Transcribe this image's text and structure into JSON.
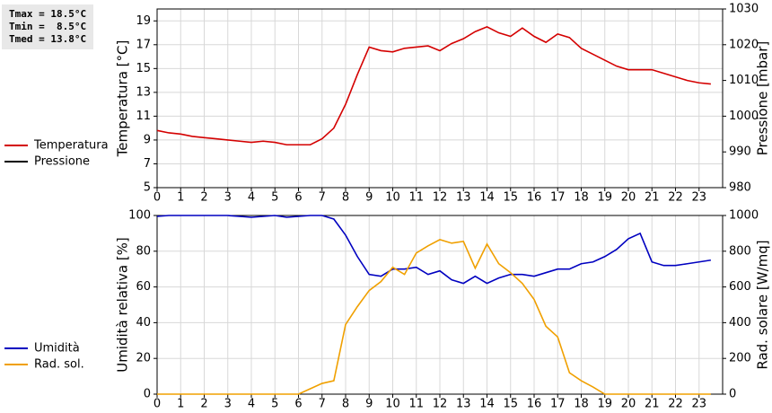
{
  "summary": [
    "Tmax = 18.5°C",
    "Tmin =  8.5°C",
    "Tmed = 13.8°C"
  ],
  "chart_data": [
    {
      "type": "line",
      "ylabel": "Temperatura [°C]",
      "y2label": "Pressione [mbar]",
      "x": [
        0,
        0.5,
        1,
        1.5,
        2,
        2.5,
        3,
        3.5,
        4,
        4.5,
        5,
        5.5,
        6,
        6.5,
        7,
        7.5,
        8,
        8.5,
        9,
        9.5,
        10,
        10.5,
        11,
        11.5,
        12,
        12.5,
        13,
        13.5,
        14,
        14.5,
        15,
        15.5,
        16,
        16.5,
        17,
        17.5,
        18,
        18.5,
        19,
        19.5,
        20,
        20.5,
        21,
        21.5,
        22,
        22.5,
        23,
        23.5
      ],
      "series": [
        {
          "name": "Temperatura",
          "color": "#d40000",
          "values": [
            9.8,
            9.6,
            9.5,
            9.3,
            9.2,
            9.1,
            9.0,
            8.9,
            8.8,
            8.9,
            8.8,
            8.6,
            8.6,
            8.6,
            9.1,
            10.0,
            12.0,
            14.5,
            16.8,
            16.5,
            16.4,
            16.7,
            16.8,
            16.9,
            16.5,
            17.1,
            17.5,
            18.1,
            18.5,
            18.0,
            17.7,
            18.4,
            17.7,
            17.2,
            17.9,
            17.6,
            16.7,
            16.2,
            15.7,
            15.2,
            14.9,
            14.9,
            14.9,
            14.6,
            14.3,
            14.0,
            13.8,
            13.7
          ]
        },
        {
          "name": "Pressione",
          "color": "#000000",
          "axis": "y2",
          "values": [
            null,
            null,
            null,
            null,
            null,
            null,
            null,
            null,
            null,
            null,
            null,
            null,
            null,
            null,
            null,
            null,
            null,
            null,
            null,
            null,
            null,
            null,
            null,
            null,
            null,
            null,
            null,
            null,
            null,
            null,
            null,
            null,
            null,
            null,
            null,
            null,
            null,
            null,
            null,
            null,
            null,
            null,
            null,
            null,
            null,
            null,
            null,
            null
          ]
        }
      ],
      "xlim": [
        0,
        24
      ],
      "xticks": [
        0,
        1,
        2,
        3,
        4,
        5,
        6,
        7,
        8,
        9,
        10,
        11,
        12,
        13,
        14,
        15,
        16,
        17,
        18,
        19,
        20,
        21,
        22,
        23
      ],
      "ylim": [
        5,
        20
      ],
      "yticks": [
        5,
        7,
        9,
        11,
        13,
        15,
        17,
        19
      ],
      "y2lim": [
        980,
        1030
      ],
      "y2ticks": [
        980,
        990,
        1000,
        1010,
        1020,
        1030
      ],
      "grid": true,
      "legend": "left"
    },
    {
      "type": "line",
      "ylabel": "Umidità relativa [%]",
      "y2label": "Rad. solare [W/mq]",
      "x": [
        0,
        0.5,
        1,
        1.5,
        2,
        2.5,
        3,
        3.5,
        4,
        4.5,
        5,
        5.5,
        6,
        6.5,
        7,
        7.5,
        8,
        8.5,
        9,
        9.5,
        10,
        10.5,
        11,
        11.5,
        12,
        12.5,
        13,
        13.5,
        14,
        14.5,
        15,
        15.5,
        16,
        16.5,
        17,
        17.5,
        18,
        18.5,
        19,
        19.5,
        20,
        20.5,
        21,
        21.5,
        22,
        22.5,
        23,
        23.5
      ],
      "series": [
        {
          "name": "Umidità",
          "color": "#0000c0",
          "values": [
            99.5,
            100,
            100,
            100,
            100,
            100,
            100,
            99.5,
            99,
            99.5,
            100,
            99,
            99.5,
            100,
            100,
            98,
            89,
            77,
            67,
            66,
            70,
            70,
            71,
            67,
            69,
            64,
            62,
            66,
            62,
            65,
            67,
            67,
            66,
            68,
            70,
            70,
            73,
            74,
            77,
            81,
            87,
            90,
            74,
            72,
            72,
            73,
            74,
            75
          ]
        },
        {
          "name": "Rad. sol.",
          "color": "#f0a000",
          "axis": "y2",
          "values": [
            0,
            0,
            0,
            0,
            0,
            0,
            0,
            0,
            0,
            0,
            0,
            0,
            0,
            30,
            60,
            75,
            390,
            490,
            580,
            630,
            710,
            670,
            790,
            830,
            865,
            845,
            855,
            705,
            840,
            730,
            680,
            620,
            530,
            380,
            320,
            120,
            75,
            40,
            0,
            0,
            0,
            0,
            0,
            0,
            0,
            0,
            0,
            0
          ]
        }
      ],
      "xlim": [
        0,
        24
      ],
      "xticks": [
        0,
        1,
        2,
        3,
        4,
        5,
        6,
        7,
        8,
        9,
        10,
        11,
        12,
        13,
        14,
        15,
        16,
        17,
        18,
        19,
        20,
        21,
        22,
        23
      ],
      "ylim": [
        0,
        100
      ],
      "yticks": [
        0,
        20,
        40,
        60,
        80,
        100
      ],
      "y2lim": [
        0,
        1000
      ],
      "y2ticks": [
        0,
        200,
        400,
        600,
        800,
        1000
      ],
      "grid": true,
      "legend": "left"
    }
  ]
}
